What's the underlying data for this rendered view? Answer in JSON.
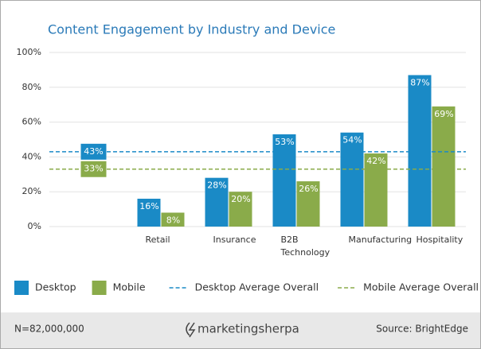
{
  "chart_data": {
    "type": "bar",
    "title": "Content Engagement by Industry and Device",
    "categories": [
      null,
      "Retail",
      "Insurance",
      "B2B Technology",
      "Manufacturing",
      "Hospitality"
    ],
    "series": [
      {
        "name": "Desktop",
        "color": "#1a8ac6",
        "values": [
          null,
          16,
          28,
          53,
          54,
          87
        ],
        "value_labels": [
          null,
          "16%",
          "28%",
          "53%",
          "54%",
          "87%"
        ]
      },
      {
        "name": "Mobile",
        "color": "#8aab4a",
        "values": [
          null,
          8,
          20,
          26,
          42,
          69
        ],
        "value_labels": [
          null,
          "8%",
          "20%",
          "26%",
          "42%",
          "69%"
        ]
      }
    ],
    "reference_lines": [
      {
        "name": "Desktop Average Overall",
        "color": "#1a8ac6",
        "value": 43,
        "value_label": "43%"
      },
      {
        "name": "Mobile Average Overall",
        "color": "#8aab4a",
        "value": 33,
        "value_label": "33%"
      }
    ],
    "ylim": [
      0,
      100
    ],
    "yticks": [
      {
        "value": 0,
        "label": "0%"
      },
      {
        "value": 20,
        "label": "20%"
      },
      {
        "value": 40,
        "label": "40%"
      },
      {
        "value": 60,
        "label": "60%"
      },
      {
        "value": 80,
        "label": "80%"
      },
      {
        "value": 100,
        "label": "100%"
      }
    ],
    "grid": true
  },
  "footer": {
    "note": "N=82,000,000",
    "logo": "marketingsherpa",
    "source": "Source: BrightEdge"
  }
}
